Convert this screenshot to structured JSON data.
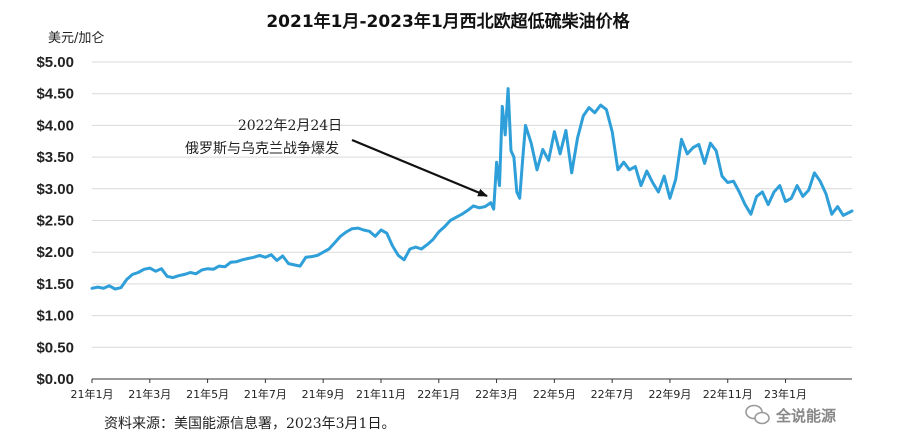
{
  "chart_data": {
    "type": "line",
    "title": "2021年1月-2023年1月西北欧超低硫柴油价格",
    "ylabel": "美元/加仑",
    "xlabel": "",
    "ylim": [
      0,
      5
    ],
    "yticks": [
      "$0.00",
      "$0.50",
      "$1.00",
      "$1.50",
      "$2.00",
      "$2.50",
      "$3.00",
      "$3.50",
      "$4.00",
      "$4.50",
      "$5.00"
    ],
    "xticks": [
      "21年1月",
      "21年3月",
      "21年5月",
      "21年7月",
      "21年9月",
      "21年11月",
      "22年1月",
      "22年3月",
      "22年5月",
      "22年7月",
      "22年9月",
      "22年11月",
      "23年1月"
    ],
    "grid": true,
    "line_color": "#2e9fd8",
    "series": [
      {
        "x": [
          0,
          0.2,
          0.4,
          0.6,
          0.8,
          1.0,
          1.2,
          1.4,
          1.6,
          1.8,
          2.0,
          2.2,
          2.4,
          2.6,
          2.8,
          3.0,
          3.2,
          3.4,
          3.6,
          3.8,
          4.0,
          4.2,
          4.4,
          4.6,
          4.8,
          5.0,
          5.2,
          5.4,
          5.6,
          5.8,
          6.0,
          6.2,
          6.4,
          6.6,
          6.8,
          7.0,
          7.2,
          7.4,
          7.6,
          7.8,
          8.0,
          8.2,
          8.4,
          8.6,
          8.8,
          9.0,
          9.2,
          9.4,
          9.6,
          9.8,
          10.0,
          10.2,
          10.4,
          10.6,
          10.8,
          11.0,
          11.2,
          11.4,
          11.6,
          11.8,
          12.0,
          12.2,
          12.4,
          12.6,
          12.8,
          13.0,
          13.2,
          13.4,
          13.6,
          13.8,
          13.9,
          14.0,
          14.1,
          14.2,
          14.3,
          14.4,
          14.5,
          14.6,
          14.7,
          14.8,
          14.9,
          15.0,
          15.2,
          15.4,
          15.6,
          15.8,
          16.0,
          16.2,
          16.4,
          16.6,
          16.8,
          17.0,
          17.2,
          17.4,
          17.6,
          17.8,
          18.0,
          18.2,
          18.4,
          18.6,
          18.8,
          19.0,
          19.2,
          19.4,
          19.6,
          19.8,
          20.0,
          20.2,
          20.4,
          20.6,
          20.8,
          21.0,
          21.2,
          21.4,
          21.6,
          21.8,
          22.0,
          22.2,
          22.4,
          22.6,
          22.8,
          23.0,
          23.2,
          23.4,
          23.6,
          23.8,
          24.0,
          24.2,
          24.4,
          24.6,
          24.8,
          25.0,
          25.2,
          25.4,
          25.6,
          25.8,
          26.0,
          26.3
        ],
        "y": [
          1.43,
          1.45,
          1.43,
          1.47,
          1.42,
          1.44,
          1.57,
          1.65,
          1.68,
          1.73,
          1.75,
          1.7,
          1.74,
          1.62,
          1.6,
          1.63,
          1.65,
          1.68,
          1.66,
          1.72,
          1.74,
          1.73,
          1.78,
          1.77,
          1.84,
          1.85,
          1.88,
          1.9,
          1.92,
          1.95,
          1.92,
          1.96,
          1.87,
          1.94,
          1.82,
          1.8,
          1.78,
          1.92,
          1.93,
          1.95,
          2.0,
          2.05,
          2.15,
          2.25,
          2.32,
          2.37,
          2.38,
          2.35,
          2.33,
          2.25,
          2.35,
          2.3,
          2.1,
          1.95,
          1.88,
          2.05,
          2.08,
          2.05,
          2.12,
          2.2,
          2.32,
          2.4,
          2.5,
          2.55,
          2.6,
          2.66,
          2.73,
          2.7,
          2.72,
          2.78,
          2.68,
          3.42,
          3.05,
          4.3,
          3.85,
          4.58,
          3.6,
          3.5,
          2.95,
          2.85,
          3.45,
          4.0,
          3.72,
          3.3,
          3.62,
          3.45,
          3.9,
          3.55,
          3.92,
          3.25,
          3.8,
          4.15,
          4.28,
          4.2,
          4.32,
          4.25,
          3.9,
          3.3,
          3.42,
          3.3,
          3.35,
          3.05,
          3.28,
          3.1,
          2.95,
          3.2,
          2.85,
          3.15,
          3.78,
          3.55,
          3.65,
          3.7,
          3.4,
          3.72,
          3.6,
          3.2,
          3.1,
          3.12,
          2.95,
          2.75,
          2.6,
          2.88,
          2.95,
          2.75,
          2.95,
          3.05,
          2.8,
          2.85,
          3.05,
          2.88,
          2.98,
          3.25,
          3.12,
          2.92,
          2.6,
          2.72,
          2.58,
          2.65
        ]
      }
    ],
    "annotation": {
      "text_line1": "2022年2月24日",
      "text_line2": "俄罗斯与乌克兰战争爆发"
    }
  },
  "source_text": "资料来源：美国能源信息署，2023年3月1日。",
  "watermark": "全说能源"
}
